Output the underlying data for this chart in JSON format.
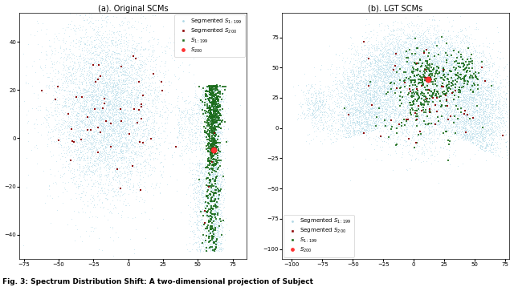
{
  "title_a": "(a). Original SCMs",
  "title_b": "(b). LGT SCMs",
  "fig_caption": "Fig. 3: Spectrum Distribution Shift: A two-dimensional projection of Subject",
  "legend_labels": [
    "Segmented $S_{1:199}$",
    "Segmented $S_{200}$",
    "$S_{1:199}$",
    "$S_{200}$"
  ],
  "colors": {
    "seg_s1_199": "#add8e6",
    "seg_s200": "#8b0000",
    "s1_199": "#1a6b1a",
    "s200": "#ff3333"
  },
  "seed": 42,
  "background": "#ffffff",
  "xlim_a": [
    -78,
    85
  ],
  "ylim_a": [
    -50,
    52
  ],
  "xlim_b": [
    -108,
    78
  ],
  "ylim_b": [
    -108,
    95
  ],
  "xticks_a": [
    -75,
    -50,
    -25,
    0,
    25,
    50,
    75
  ],
  "xticks_b": [
    -100,
    -75,
    -50,
    -25,
    0,
    25,
    50,
    75
  ],
  "yticks_a": [
    -40,
    -20,
    0,
    20,
    40
  ],
  "yticks_b": [
    -100,
    -75,
    -50,
    -25,
    0,
    25,
    50,
    75
  ]
}
